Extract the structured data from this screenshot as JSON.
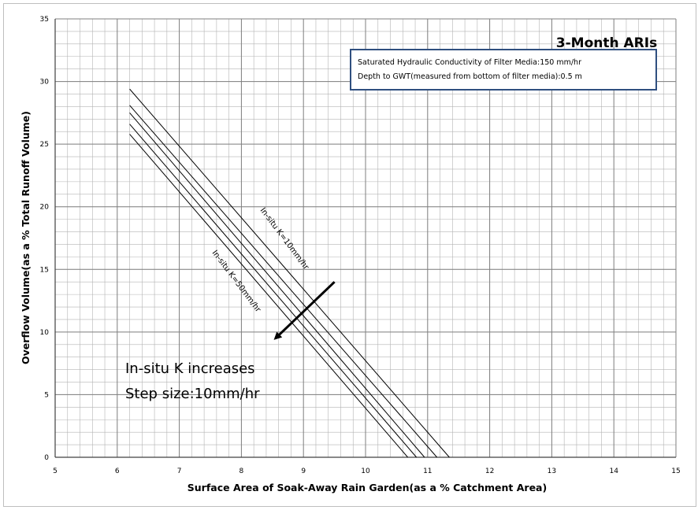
{
  "chart_data": {
    "type": "line",
    "title": "3-Month ARIs",
    "xlabel": "Surface Area of Soak-Away Rain Garden(as a %  Catchment Area)",
    "ylabel": "Overflow Volume(as a % Total Runoff Volume)",
    "xlim": [
      5,
      15
    ],
    "ylim": [
      0,
      35
    ],
    "x_major_ticks": [
      5,
      6,
      7,
      8,
      9,
      10,
      11,
      12,
      13,
      14,
      15
    ],
    "y_major_ticks": [
      0,
      5,
      10,
      15,
      20,
      25,
      30,
      35
    ],
    "grid": true,
    "info_box": [
      "Saturated Hydraulic Conductivity of Filter Media:150 mm/hr",
      "Depth to GWT(measured  from  bottom of filter media):0.5 m"
    ],
    "series": [
      {
        "x": [
          6.2,
          11.35
        ],
        "y": [
          29.4,
          0
        ]
      },
      {
        "x": [
          6.2,
          11.15
        ],
        "y": [
          28.1,
          0
        ]
      },
      {
        "x": [
          6.2,
          10.95
        ],
        "y": [
          27.5,
          0
        ]
      },
      {
        "x": [
          6.2,
          10.82
        ],
        "y": [
          26.6,
          0
        ]
      },
      {
        "x": [
          6.2,
          10.68
        ],
        "y": [
          25.8,
          0
        ]
      }
    ],
    "annotations": {
      "curve_label_top": "In-situ K=10mm/hr",
      "curve_label_bottom": "In-situ K=50mm/hr",
      "note_line1": "In-situ K increases",
      "note_line2": "Step size:10mm/hr"
    },
    "arrow": {
      "from": [
        9.5,
        14
      ],
      "to": [
        8.55,
        9.5
      ]
    }
  }
}
